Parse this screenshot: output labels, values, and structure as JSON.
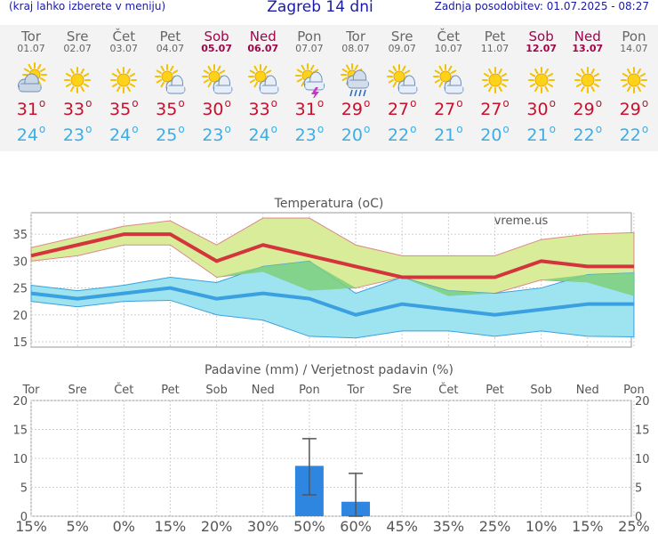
{
  "header": {
    "left_hint": "(kraj lahko izberete v meniju)",
    "title": "Zagreb 14 dni",
    "updated": "Zadnja posodobitev: 01.07.2025 - 08:27"
  },
  "forecast": {
    "degree_symbol": "o",
    "days": [
      {
        "day": "Tor",
        "date": "01.07",
        "weekend": false,
        "icon": "partly-cloudy-icon",
        "tmax": "31",
        "tmin": "24"
      },
      {
        "day": "Sre",
        "date": "02.07",
        "weekend": false,
        "icon": "sun-icon",
        "tmax": "33",
        "tmin": "23"
      },
      {
        "day": "Čet",
        "date": "03.07",
        "weekend": false,
        "icon": "sun-icon",
        "tmax": "35",
        "tmin": "24"
      },
      {
        "day": "Pet",
        "date": "04.07",
        "weekend": false,
        "icon": "sun-cloud-icon",
        "tmax": "35",
        "tmin": "25"
      },
      {
        "day": "Sob",
        "date": "05.07",
        "weekend": true,
        "icon": "sun-cloud-icon",
        "tmax": "30",
        "tmin": "23"
      },
      {
        "day": "Ned",
        "date": "06.07",
        "weekend": true,
        "icon": "sun-cloud-icon",
        "tmax": "33",
        "tmin": "24"
      },
      {
        "day": "Pon",
        "date": "07.07",
        "weekend": false,
        "icon": "thunderstorm-icon",
        "tmax": "31",
        "tmin": "23"
      },
      {
        "day": "Tor",
        "date": "08.07",
        "weekend": false,
        "icon": "rain-icon",
        "tmax": "29",
        "tmin": "20"
      },
      {
        "day": "Sre",
        "date": "09.07",
        "weekend": false,
        "icon": "sun-cloud-icon",
        "tmax": "27",
        "tmin": "22"
      },
      {
        "day": "Čet",
        "date": "10.07",
        "weekend": false,
        "icon": "sun-cloud-icon",
        "tmax": "27",
        "tmin": "21"
      },
      {
        "day": "Pet",
        "date": "11.07",
        "weekend": false,
        "icon": "sun-icon",
        "tmax": "27",
        "tmin": "20"
      },
      {
        "day": "Sob",
        "date": "12.07",
        "weekend": true,
        "icon": "sun-icon",
        "tmax": "30",
        "tmin": "21"
      },
      {
        "day": "Ned",
        "date": "13.07",
        "weekend": true,
        "icon": "sun-icon",
        "tmax": "29",
        "tmin": "22"
      },
      {
        "day": "Pon",
        "date": "14.07",
        "weekend": false,
        "icon": "sun-icon",
        "tmax": "29",
        "tmin": "22"
      }
    ]
  },
  "colors": {
    "max_line": "#d4343c",
    "min_line": "#3aa0e0",
    "max_band": "#d8ec9a",
    "min_band": "#9ee3f0",
    "overlap_band": "#7fd07a",
    "precip_bar": "#2f86e0",
    "error_bar": "#555555",
    "weekend": "#a0054a",
    "prob_low": "#7fd6f2",
    "prob_high": "#1f7fd6"
  },
  "chart_data": [
    {
      "type": "line",
      "title": "Temperatura (oC)",
      "watermark": "vreme.us",
      "categories": [
        "01.07",
        "02.07",
        "03.07",
        "04.07",
        "05.07",
        "06.07",
        "07.07",
        "08.07",
        "09.07",
        "10.07",
        "11.07",
        "12.07",
        "13.07",
        "14.07"
      ],
      "ylim": [
        14,
        39
      ],
      "yticks": [
        15,
        20,
        25,
        30,
        35
      ],
      "grid": true,
      "series": [
        {
          "values": [
            31,
            33,
            35,
            35,
            30,
            33,
            31,
            29,
            27,
            27,
            27,
            30,
            29,
            29
          ]
        },
        {
          "values": [
            32.5,
            34.5,
            36.5,
            37.5,
            33,
            38,
            38,
            33,
            31,
            31,
            31,
            34,
            35,
            35.3
          ]
        },
        {
          "values": [
            30,
            31,
            33,
            33,
            27,
            28,
            24.5,
            25,
            27,
            23.5,
            24,
            26.5,
            26,
            23.5
          ]
        },
        {
          "values": [
            24,
            23,
            24,
            25,
            23,
            24,
            23,
            20,
            22,
            21,
            20,
            21,
            22,
            22
          ]
        },
        {
          "values": [
            25.5,
            24.5,
            25.5,
            27,
            26,
            29,
            30,
            24,
            27,
            24.5,
            24,
            25,
            27.5,
            27.8
          ]
        },
        {
          "values": [
            22.5,
            21.5,
            22.5,
            22.7,
            20,
            19,
            16,
            15.7,
            17,
            17,
            16,
            17,
            16,
            15.9
          ]
        }
      ]
    },
    {
      "type": "bar",
      "title": "Padavine (mm) / Verjetnost padavin (%)",
      "categories": [
        "Tor",
        "Sre",
        "Čet",
        "Pet",
        "Sob",
        "Ned",
        "Pon",
        "Tor",
        "Sre",
        "Čet",
        "Pet",
        "Sob",
        "Ned",
        "Pon"
      ],
      "weekend": [
        false,
        false,
        false,
        false,
        true,
        true,
        false,
        false,
        false,
        false,
        false,
        true,
        true,
        false
      ],
      "ylim": [
        0,
        20
      ],
      "yticks": [
        0,
        5,
        10,
        15,
        20
      ],
      "grid": true,
      "series": [
        {
          "values": [
            0,
            0,
            0,
            0,
            0,
            0,
            8.7,
            2.5,
            0,
            0,
            0,
            0,
            0,
            0
          ]
        }
      ],
      "error_bars": [
        null,
        null,
        null,
        null,
        null,
        null,
        [
          3.7,
          13.4
        ],
        [
          0,
          7.4
        ],
        null,
        null,
        null,
        null,
        null,
        null
      ],
      "probabilities": [
        "15%",
        "5%",
        "0%",
        "15%",
        "20%",
        "30%",
        "50%",
        "60%",
        "45%",
        "35%",
        "25%",
        "10%",
        "15%",
        "25%"
      ],
      "prob_values": [
        15,
        5,
        0,
        15,
        20,
        30,
        50,
        60,
        45,
        35,
        25,
        10,
        15,
        25
      ]
    }
  ]
}
